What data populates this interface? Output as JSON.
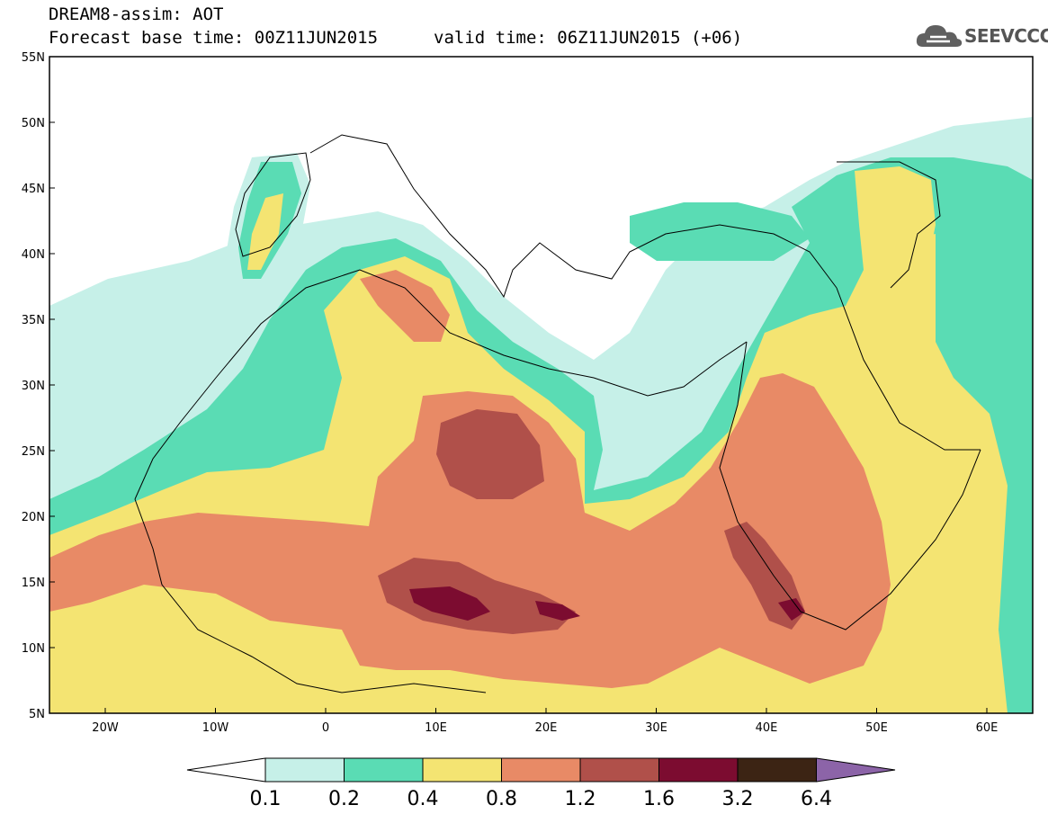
{
  "header": {
    "title_line1": "DREAM8-assim: AOT",
    "title_line2": "Forecast base time: 00Z11JUN2015",
    "valid_time": "valid time: 06Z11JUN2015 (+06)",
    "logo_text": "SEEVCCC"
  },
  "map": {
    "lat_labels": [
      "55N",
      "50N",
      "45N",
      "40N",
      "35N",
      "30N",
      "25N",
      "20N",
      "15N",
      "10N",
      "5N"
    ],
    "lon_labels": [
      "20W",
      "10W",
      "0",
      "10E",
      "20E",
      "30E",
      "40E",
      "50E",
      "60E"
    ],
    "colors": {
      "land_line": "#000000",
      "level_0_1": "#c6f0e8",
      "level_0_2": "#5adcb4",
      "level_0_4": "#f4e472",
      "level_0_8": "#e88a66",
      "level_1_2": "#b0504a",
      "level_1_6": "#7c0c30",
      "level_3_2": "#3c2414",
      "level_6_4": "#8c64a8"
    }
  },
  "colorbar": {
    "labels": [
      "0.1",
      "0.2",
      "0.4",
      "0.8",
      "1.2",
      "1.6",
      "3.2",
      "6.4"
    ],
    "colors": [
      "#c6f0e8",
      "#5adcb4",
      "#f4e472",
      "#e88a66",
      "#b0504a",
      "#7c0c30",
      "#3c2414",
      "#8c64a8"
    ]
  }
}
